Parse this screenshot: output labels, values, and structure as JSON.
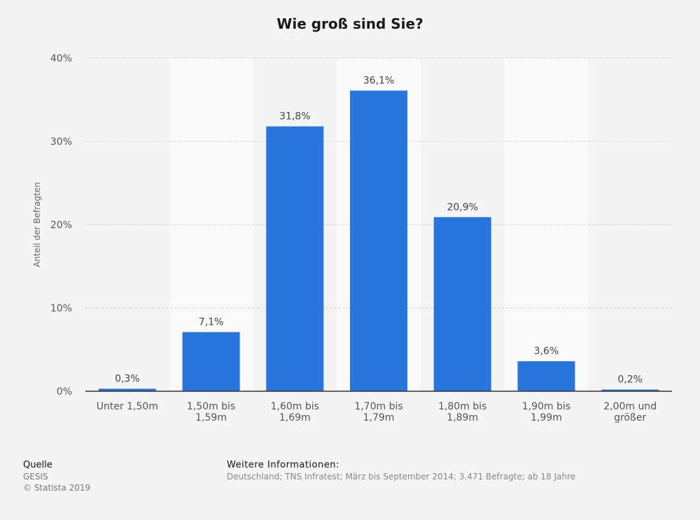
{
  "chart_data": {
    "type": "bar",
    "title": "Wie groß sind Sie?",
    "xlabel": "",
    "ylabel": "Anteil der Befragten",
    "ylim": [
      0,
      40
    ],
    "yticks": [
      "0%",
      "10%",
      "20%",
      "30%",
      "40%"
    ],
    "categories": [
      "Unter 1,50m",
      "1,50m bis\n1,59m",
      "1,60m bis\n1,69m",
      "1,70m bis\n1,79m",
      "1,80m bis\n1,89m",
      "1,90m bis\n1,99m",
      "2,00m und\ngrößer"
    ],
    "values": [
      0.3,
      7.1,
      31.8,
      36.1,
      20.9,
      3.6,
      0.2
    ],
    "value_labels": [
      "0,3%",
      "7,1%",
      "31,8%",
      "36,1%",
      "20,9%",
      "3,6%",
      "0,2%"
    ],
    "grid": true,
    "bar_color": "#2876dd"
  },
  "footer": {
    "source_heading": "Quelle",
    "source": "GESIS",
    "copyright": "© Statista 2019",
    "info_heading": "Weitere Informationen:",
    "info": "Deutschland; TNS Infratest; März bis September 2014; 3.471 Befragte; ab 18 Jahre"
  }
}
